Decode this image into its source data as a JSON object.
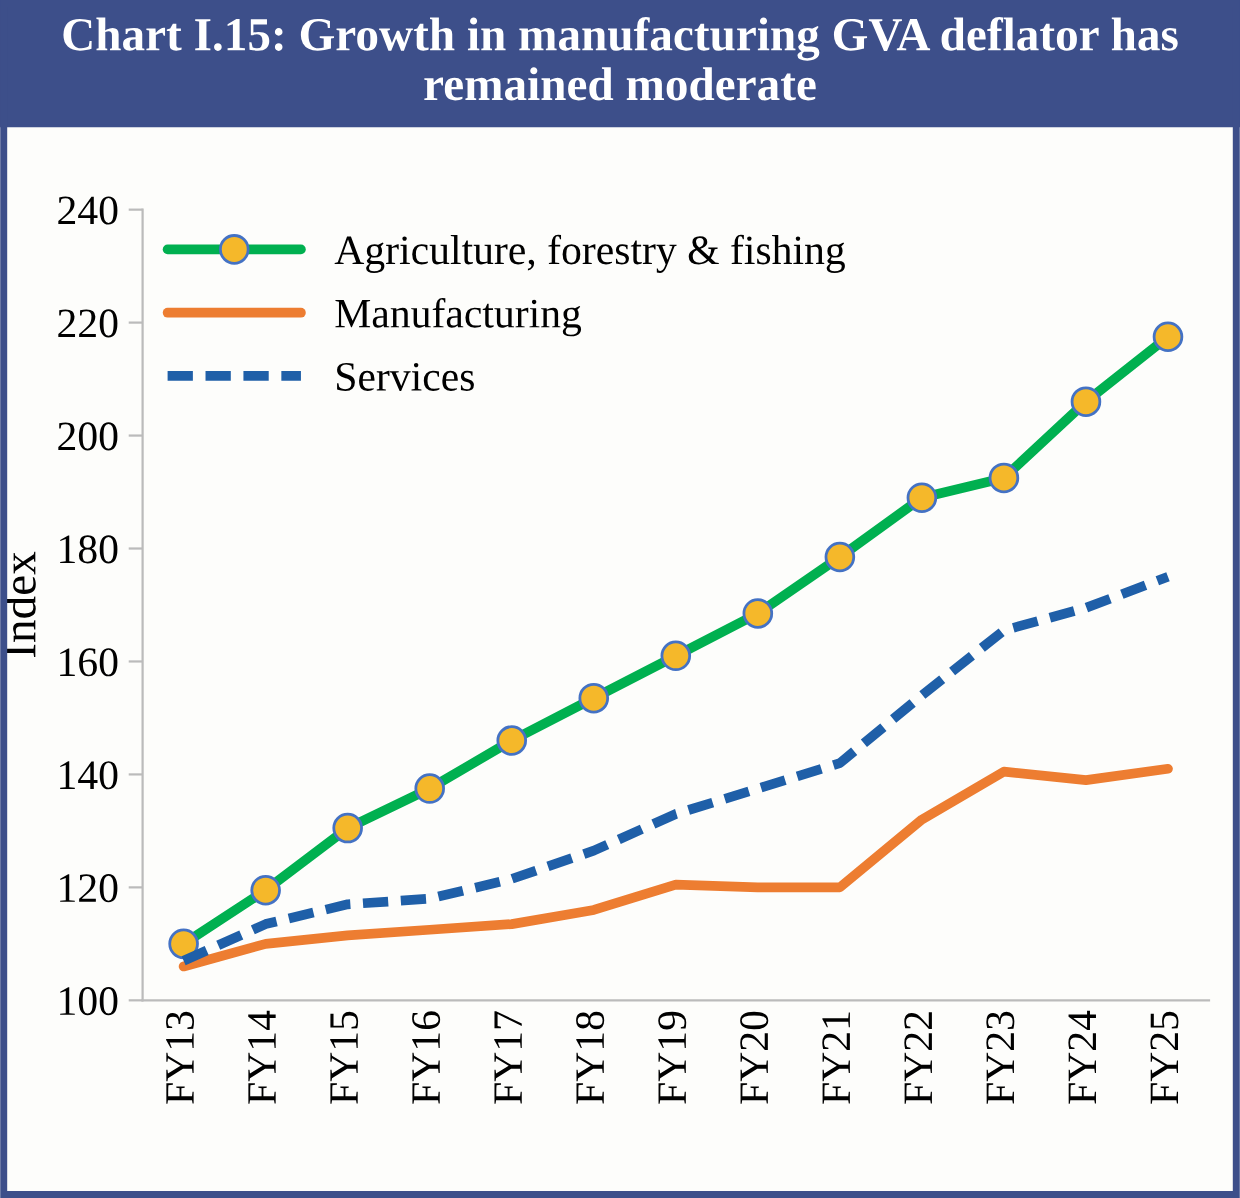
{
  "chart_data": {
    "type": "line",
    "title": "Chart I.15: Growth in manufacturing GVA deflator has remained moderate",
    "ylabel": "Index",
    "categories": [
      "FY13",
      "FY14",
      "FY15",
      "FY16",
      "FY17",
      "FY18",
      "FY19",
      "FY20",
      "FY21",
      "FY22",
      "FY23",
      "FY24",
      "FY25"
    ],
    "series": [
      {
        "name": "Agriculture, forestry & fishing",
        "color": "#00b050",
        "marker": "circle",
        "line_style": "solid",
        "values": [
          110,
          119.5,
          130.5,
          137.5,
          146,
          153.5,
          161,
          168.5,
          178.5,
          189,
          192.5,
          206,
          217.5
        ]
      },
      {
        "name": "Manufacturing",
        "color": "#ed7d31",
        "marker": "none",
        "line_style": "solid",
        "values": [
          106,
          110,
          111.5,
          112.5,
          113.5,
          116,
          120.5,
          120,
          120,
          132,
          140.5,
          139,
          141
        ]
      },
      {
        "name": "Services",
        "color": "#1f5fa8",
        "marker": "none",
        "line_style": "dashed",
        "values": [
          107,
          113.5,
          117,
          118,
          121.5,
          126.5,
          133,
          137.5,
          142,
          154,
          165.5,
          169.5,
          175
        ]
      }
    ],
    "ylim": [
      100,
      240
    ],
    "yticks": [
      100,
      120,
      140,
      160,
      180,
      200,
      220,
      240
    ],
    "grid": false,
    "legend": "top left"
  }
}
